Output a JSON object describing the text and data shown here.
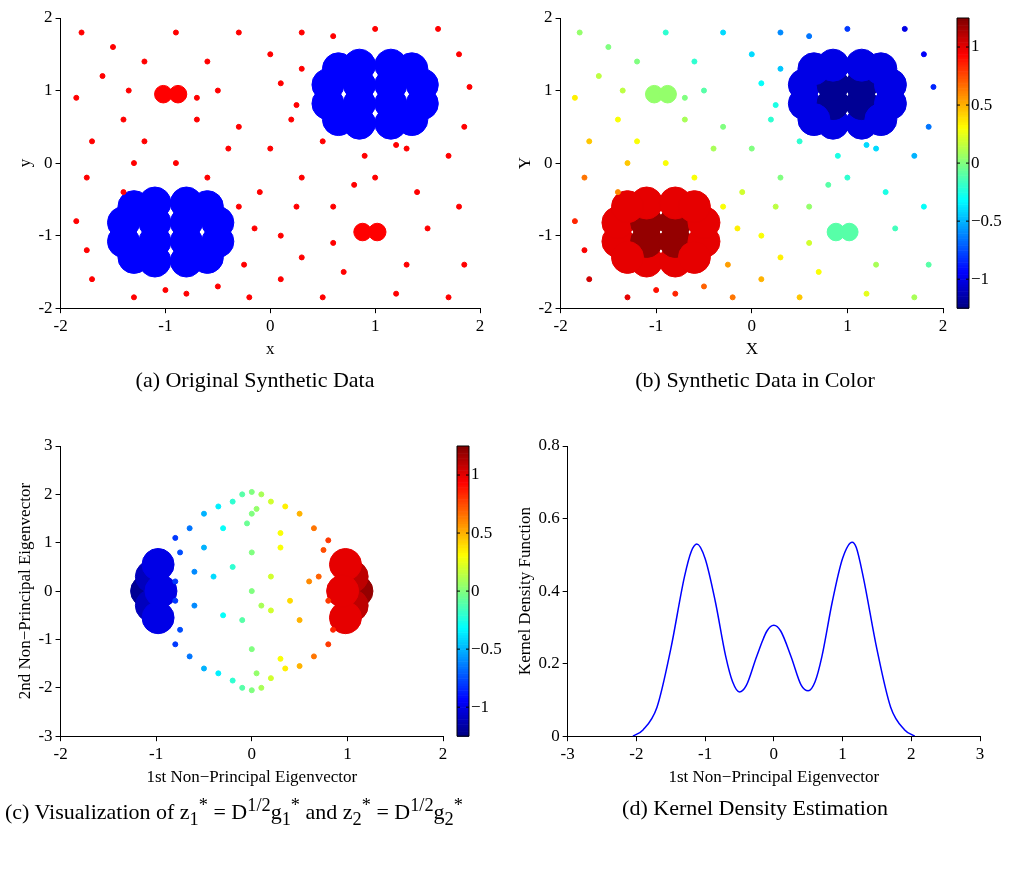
{
  "chart_data": [
    {
      "type": "scatter",
      "title": "(a) Original Synthetic Data",
      "xlabel": "x",
      "ylabel": "y",
      "xlim": [
        -2,
        2
      ],
      "ylim": [
        -2,
        2
      ],
      "xticks": [
        -2,
        -1,
        0,
        1,
        2
      ],
      "yticks": [
        -2,
        -1,
        0,
        1,
        2
      ],
      "marker": "circle",
      "series": [
        {
          "color": "#ff0000",
          "x": [
            -1.8,
            -1.5,
            -1.2,
            -1.6,
            -1.85,
            -1.4,
            -1.7,
            -1.2,
            -1.75,
            -1.4,
            -1.85,
            -1.7,
            -1.3,
            -0.8,
            -0.5,
            -0.2,
            -0.25,
            -0.15,
            -0.3,
            -0.1,
            -0.6,
            -0.9,
            -0.4,
            -0.7,
            -0.5,
            -0.6,
            -0.3,
            -0.9,
            -1.35,
            -0.7,
            0.0,
            0.3,
            0.1,
            0.2,
            0.0,
            0.3,
            0.5,
            0.25,
            0.1,
            0.3,
            0.1,
            0.5,
            0.7,
            0.6,
            0.8,
            1.3,
            1.2,
            1.7,
            1.85,
            1.5,
            1.8,
            1.4,
            1.0,
            1.7,
            1.3,
            0.9,
            1.85,
            1.9,
            1.8,
            1.6,
            1.0,
            0.6,
            0.3,
            0.25,
            1.2,
            -1.75,
            -0.3,
            -1.0,
            0.6,
            -1.3
          ],
          "values": [
            1.8,
            1.6,
            1.4,
            1.2,
            0.9,
            0.6,
            0.3,
            0.3,
            -0.2,
            -0.4,
            -0.8,
            -1.6,
            -1.85,
            -1.8,
            -1.7,
            -1.85,
            -1.4,
            -0.9,
            -0.6,
            -0.4,
            -0.2,
            0.0,
            0.2,
            0.6,
            1.0,
            1.4,
            1.8,
            1.8,
            1.0,
            0.9,
            1.5,
            1.8,
            1.1,
            0.6,
            0.2,
            -0.2,
            0.3,
            -0.6,
            -1.0,
            -1.3,
            -1.6,
            -1.85,
            -1.5,
            -0.6,
            -0.3,
            -1.4,
            -1.8,
            -1.85,
            -1.4,
            -0.9,
            -0.6,
            -0.4,
            -0.2,
            0.1,
            0.2,
            0.1,
            0.5,
            1.05,
            1.5,
            1.85,
            1.85,
            1.75,
            1.3,
            0.8,
            0.25,
            -1.2,
            0.5,
            -1.75,
            -1.1,
            0.0
          ]
        },
        {
          "type": "bubble",
          "color": "#ff0000",
          "x": [
            -1.02,
            -0.88,
            0.88,
            1.02
          ],
          "values": [
            0.95,
            0.95,
            -0.95,
            -0.95
          ],
          "sizes": [
            0.3,
            0.3,
            0.3,
            0.3
          ]
        },
        {
          "type": "bubble",
          "color": "#0000ff",
          "x": [
            -1.4,
            -1.4,
            -1.1,
            -1.1,
            -1.1,
            -1.1,
            -0.8,
            -0.8,
            -0.8,
            -0.8,
            -0.5,
            -0.5,
            -1.3,
            -1.3,
            -0.6,
            -0.6,
            0.55,
            0.55,
            0.85,
            0.85,
            0.85,
            0.85,
            1.15,
            1.15,
            1.15,
            1.15,
            1.45,
            1.45,
            0.65,
            0.65,
            1.35,
            1.35
          ],
          "values": [
            -1.08,
            -0.82,
            -1.35,
            -1.08,
            -0.82,
            -0.55,
            -1.35,
            -1.08,
            -0.82,
            -0.55,
            -1.08,
            -0.82,
            -1.3,
            -0.6,
            -1.3,
            -0.6,
            0.82,
            1.08,
            0.55,
            0.82,
            1.08,
            1.35,
            0.55,
            0.82,
            1.08,
            1.35,
            0.82,
            1.08,
            0.6,
            1.3,
            0.6,
            1.3
          ],
          "sizes": [
            1,
            1,
            1,
            1,
            1,
            1,
            1,
            1,
            1,
            1,
            1,
            1,
            1,
            1,
            1,
            1,
            1,
            1,
            1,
            1,
            1,
            1,
            1,
            1,
            1,
            1,
            1,
            1,
            1,
            1,
            1,
            1
          ]
        }
      ]
    },
    {
      "type": "scatter",
      "title": "(b) Synthetic Data in Color",
      "xlabel": "X",
      "ylabel": "Y",
      "xlim": [
        -2,
        2
      ],
      "ylim": [
        -2,
        2
      ],
      "xticks": [
        -2,
        -1,
        0,
        1,
        2
      ],
      "yticks": [
        -2,
        -1,
        0,
        1,
        2
      ],
      "marker": "circle",
      "clim": [
        -1.25,
        1.25
      ],
      "cticks": [
        -1,
        -0.5,
        0,
        0.5,
        1
      ],
      "series": [
        {
          "x": [
            -1.8,
            -1.5,
            -1.2,
            -1.6,
            -1.85,
            -1.4,
            -1.7,
            -1.2,
            -1.75,
            -1.4,
            -1.85,
            -1.7,
            -1.3,
            -0.8,
            -0.5,
            -0.2,
            -0.25,
            -0.15,
            -0.3,
            -0.1,
            -0.6,
            -0.9,
            -0.4,
            -0.7,
            -0.5,
            -0.6,
            -0.3,
            -0.9,
            -1.35,
            -0.7,
            0.0,
            0.3,
            0.1,
            0.2,
            0.0,
            0.3,
            0.5,
            0.25,
            0.1,
            0.3,
            0.1,
            0.5,
            0.7,
            0.6,
            0.8,
            1.3,
            1.2,
            1.7,
            1.85,
            1.5,
            1.8,
            1.4,
            1.0,
            1.7,
            1.3,
            0.9,
            1.85,
            1.9,
            1.8,
            1.6,
            1.0,
            0.6,
            0.3,
            0.25,
            1.2,
            -1.75,
            -0.3,
            -1.0,
            0.6,
            -1.3
          ],
          "values": [
            1.8,
            1.6,
            1.4,
            1.2,
            0.9,
            0.6,
            0.3,
            0.3,
            -0.2,
            -0.4,
            -0.8,
            -1.6,
            -1.85,
            -1.8,
            -1.7,
            -1.85,
            -1.4,
            -0.9,
            -0.6,
            -0.4,
            -0.2,
            0.0,
            0.2,
            0.6,
            1.0,
            1.4,
            1.8,
            1.8,
            1.0,
            0.9,
            1.5,
            1.8,
            1.1,
            0.6,
            0.2,
            -0.2,
            0.3,
            -0.6,
            -1.0,
            -1.3,
            -1.6,
            -1.85,
            -1.5,
            -0.6,
            -0.3,
            -1.4,
            -1.8,
            -1.85,
            -1.4,
            -0.9,
            -0.6,
            -0.4,
            -0.2,
            0.1,
            0.2,
            0.1,
            0.5,
            1.05,
            1.5,
            1.85,
            1.85,
            1.75,
            1.3,
            0.8,
            0.25,
            -1.2,
            0.5,
            -1.75,
            -1.1,
            0.0
          ],
          "cvalues": [
            0.05,
            0.0,
            0.0,
            0.15,
            0.35,
            0.3,
            0.45,
            0.3,
            0.65,
            0.6,
            0.85,
            1.05,
            1.0,
            0.85,
            0.7,
            0.65,
            0.55,
            0.35,
            0.3,
            0.2,
            0.3,
            0.3,
            0.1,
            0.1,
            -0.1,
            -0.2,
            -0.4,
            -0.2,
            0.15,
            0.0,
            -0.4,
            -0.6,
            -0.3,
            -0.2,
            0.0,
            0.0,
            -0.2,
            0.15,
            0.3,
            0.35,
            0.5,
            0.45,
            0.3,
            0.05,
            -0.1,
            0.1,
            0.25,
            0.1,
            -0.1,
            -0.15,
            -0.3,
            -0.25,
            -0.2,
            -0.5,
            -0.4,
            -0.25,
            -0.65,
            -0.85,
            -0.95,
            -1.0,
            -0.8,
            -0.65,
            -0.45,
            -0.25,
            -0.4,
            0.95,
            0.0,
            0.9,
            0.2,
            0.45
          ],
          "colors": [
            "#94ff6b",
            "#80ff80",
            "#80ff80",
            "#bdff42",
            "#fff000",
            "#faff05",
            "#ffc700",
            "#faff05",
            "#ff7500",
            "#ff8a00",
            "#ff2400",
            "#d10000",
            "#e60000",
            "#ff2400",
            "#ff6100",
            "#ff7500",
            "#ff9e00",
            "#fff000",
            "#faff05",
            "#d1ff2e",
            "#faff05",
            "#faff05",
            "#a8ff57",
            "#a8ff57",
            "#57ffa8",
            "#2effd1",
            "#00dbff",
            "#2effd1",
            "#bdff42",
            "#80ff80",
            "#00dbff",
            "#008aff",
            "#05fffa",
            "#2effd1",
            "#80ff80",
            "#80ff80",
            "#2effd1",
            "#bdff42",
            "#faff05",
            "#fff000",
            "#ffb300",
            "#ffc700",
            "#faff05",
            "#94ff6b",
            "#57ffa8",
            "#a8ff57",
            "#e6ff1a",
            "#a8ff57",
            "#57ffa8",
            "#42ffbd",
            "#05fffa",
            "#1affe6",
            "#2effd1",
            "#00b3ff",
            "#00dbff",
            "#1affe6",
            "#0075ff",
            "#0024ff",
            "#0000fa",
            "#0000e6",
            "#0038ff",
            "#0075ff",
            "#00c7ff",
            "#1affe6",
            "#00dbff",
            "#fa0000",
            "#80ff80",
            "#ff0f00",
            "#d1ff2e",
            "#ffc700"
          ]
        },
        {
          "type": "bubble",
          "x": [
            -1.02,
            -0.88,
            0.88,
            1.02
          ],
          "values": [
            0.95,
            0.95,
            -0.95,
            -0.95
          ],
          "sizes": [
            0.3,
            0.3,
            0.3,
            0.3
          ],
          "cvalues": [
            0.05,
            0.05,
            -0.1,
            -0.1
          ],
          "colors": [
            "#94ff6b",
            "#94ff6b",
            "#57ffa8",
            "#57ffa8"
          ]
        },
        {
          "type": "bubble",
          "x": [
            -1.4,
            -1.4,
            -1.1,
            -1.1,
            -1.1,
            -1.1,
            -0.8,
            -0.8,
            -0.8,
            -0.8,
            -0.5,
            -0.5,
            -1.3,
            -1.3,
            -0.6,
            -0.6,
            0.55,
            0.55,
            0.85,
            0.85,
            0.85,
            0.85,
            1.15,
            1.15,
            1.15,
            1.15,
            1.45,
            1.45,
            0.65,
            0.65,
            1.35,
            1.35
          ],
          "values": [
            -1.08,
            -0.82,
            -1.35,
            -1.08,
            -0.82,
            -0.55,
            -1.35,
            -1.08,
            -0.82,
            -0.55,
            -1.08,
            -0.82,
            -1.3,
            -0.6,
            -1.3,
            -0.6,
            0.82,
            1.08,
            0.55,
            0.82,
            1.08,
            1.35,
            0.55,
            0.82,
            1.08,
            1.35,
            0.82,
            1.08,
            0.6,
            1.3,
            0.6,
            1.3
          ],
          "sizes": [
            1,
            1,
            1,
            1,
            1,
            1,
            1,
            1,
            1,
            1,
            1,
            1,
            1,
            1,
            1,
            1,
            1,
            1,
            1,
            1,
            1,
            1,
            1,
            1,
            1,
            1,
            1,
            1,
            1,
            1,
            1,
            1
          ],
          "cvalues": [
            1.0,
            1.0,
            1.0,
            1.2,
            1.2,
            1.0,
            1.0,
            1.2,
            1.2,
            1.0,
            1.0,
            1.0,
            1.0,
            1.0,
            1.0,
            1.0,
            -1.0,
            -1.0,
            -1.0,
            -1.2,
            -1.2,
            -1.0,
            -1.0,
            -1.2,
            -1.2,
            -1.0,
            -1.0,
            -1.0,
            -1.0,
            -1.0,
            -1.0,
            -1.0
          ],
          "colors": [
            "#e60000",
            "#e60000",
            "#e60000",
            "#940000",
            "#940000",
            "#e60000",
            "#e60000",
            "#940000",
            "#940000",
            "#e60000",
            "#e60000",
            "#e60000",
            "#e60000",
            "#e60000",
            "#e60000",
            "#e60000",
            "#0000e6",
            "#0000e6",
            "#0000e6",
            "#000094",
            "#000094",
            "#0000e6",
            "#0000e6",
            "#000094",
            "#000094",
            "#0000e6",
            "#0000e6",
            "#0000e6",
            "#0000e6",
            "#0000e6",
            "#0000e6",
            "#0000e6"
          ]
        }
      ]
    },
    {
      "type": "scatter",
      "title": "(c) Visualization of z$_{1}$$^{*}$ = D$^{1/2}$g$_{1}$$^{*}$ and z$_{2}$$^{*}$ = D$^{1/2}$g$_{2}$$^{*}$",
      "xlabel": "1st Non−Principal Eigenvector",
      "ylabel": "2nd Non−Principal Eigenvector",
      "xlim": [
        -2,
        2
      ],
      "ylim": [
        -3,
        3
      ],
      "xticks": [
        -2,
        -1,
        0,
        1,
        2
      ],
      "yticks": [
        -3,
        -2,
        -1,
        0,
        1,
        2,
        3
      ],
      "marker": "circle",
      "clim": [
        -1.25,
        1.25
      ],
      "cticks": [
        -1,
        -0.5,
        0,
        0.5,
        1
      ],
      "series": [
        {
          "x": [
            0,
            0.1,
            -0.1,
            0.05,
            -0.05,
            0,
            -0.2,
            0.2,
            -0.35,
            0.35,
            -0.5,
            0.5,
            -0.65,
            0.65,
            -0.8,
            0.8,
            -0.75,
            0.75,
            -0.3,
            0.3,
            0,
            0.1,
            -0.1,
            0.05,
            0,
            -0.2,
            0.2,
            -0.35,
            0.35,
            -0.5,
            0.5,
            -0.65,
            0.65,
            -0.8,
            0.8,
            -0.75,
            0.85,
            0.3,
            -0.6,
            -0.6,
            -0.4,
            -0.2,
            0,
            0.2,
            0.1,
            -0.3,
            0.4,
            0.6,
            0.5,
            -0.5,
            0.3,
            0.7,
            0.8,
            -0.8,
            -0.8,
            -0.1,
            0,
            0.2
          ],
          "values": [
            2.05,
            2.0,
            2.0,
            1.7,
            1.4,
            1.6,
            1.85,
            1.85,
            1.75,
            1.75,
            1.6,
            1.6,
            1.3,
            1.3,
            1.1,
            1.05,
            0.8,
            0.85,
            1.3,
            1.2,
            -2.05,
            -2.0,
            -2.0,
            -1.7,
            -1.2,
            -1.85,
            -1.8,
            -1.7,
            -1.6,
            -1.6,
            -1.55,
            -1.35,
            -1.35,
            -1.1,
            -1.1,
            -0.8,
            -0.8,
            -1.4,
            0.4,
            -0.3,
            0.3,
            0.5,
            0,
            0.3,
            -0.3,
            -0.5,
            -0.2,
            0.2,
            -0.6,
            0.9,
            0.9,
            0.3,
            -0.2,
            0.2,
            -0.2,
            -0.6,
            0.8,
            -0.4
          ],
          "cvalues": [
            0,
            0.1,
            -0.1,
            0.05,
            -0.05,
            0,
            -0.2,
            0.2,
            -0.35,
            0.35,
            -0.5,
            0.5,
            -0.65,
            0.65,
            -0.8,
            0.8,
            -0.75,
            0.75,
            -0.3,
            0.3,
            0,
            0.1,
            -0.1,
            0.05,
            0,
            -0.2,
            0.2,
            -0.35,
            0.35,
            -0.5,
            0.5,
            -0.65,
            0.65,
            -0.8,
            0.8,
            -0.75,
            0.85,
            0.3,
            -0.6,
            -0.6,
            -0.4,
            -0.2,
            0,
            0.2,
            0.1,
            -0.3,
            0.4,
            0.6,
            0.5,
            -0.5,
            0.3,
            0.7,
            0.8,
            -0.8,
            -0.8,
            -0.1,
            0,
            0.2
          ],
          "colors": [
            "#80ff80",
            "#a8ff57",
            "#57ffa8",
            "#94ff6b",
            "#6bff94",
            "#80ff80",
            "#2effd1",
            "#d1ff2e",
            "#00f0ff",
            "#fff000",
            "#00b3ff",
            "#ffb300",
            "#0075ff",
            "#ff7500",
            "#0038ff",
            "#ff3800",
            "#004dff",
            "#ff4d00",
            "#05fffa",
            "#faff05",
            "#80ff80",
            "#a8ff57",
            "#57ffa8",
            "#94ff6b",
            "#80ff80",
            "#2effd1",
            "#d1ff2e",
            "#00f0ff",
            "#fff000",
            "#00b3ff",
            "#ffb300",
            "#0075ff",
            "#ff7500",
            "#0038ff",
            "#ff3800",
            "#004dff",
            "#ff2400",
            "#faff05",
            "#008aff",
            "#008aff",
            "#00dbff",
            "#2effd1",
            "#80ff80",
            "#d1ff2e",
            "#a8ff57",
            "#05fffa",
            "#ffdb00",
            "#ff8a00",
            "#ffb300",
            "#00b3ff",
            "#faff05",
            "#ff6100",
            "#ff3800",
            "#0038ff",
            "#0038ff",
            "#57ffa8",
            "#80ff80",
            "#d1ff2e"
          ]
        },
        {
          "type": "bubble",
          "x": [
            -1.1,
            -1.05,
            -1.05,
            -0.98,
            -0.98,
            -0.95,
            1.1,
            1.05,
            1.05,
            0.98,
            0.98,
            0.95
          ],
          "values": [
            0,
            0.3,
            -0.3,
            0.55,
            -0.55,
            0,
            0,
            0.3,
            -0.3,
            0.55,
            -0.55,
            0
          ],
          "sizes": [
            1,
            1,
            1,
            1,
            1,
            1,
            1,
            1,
            1,
            1,
            1,
            1
          ],
          "cvalues": [
            -1.2,
            -1.1,
            -1.1,
            -1.0,
            -1.0,
            -1.0,
            1.2,
            1.1,
            1.1,
            1.0,
            1.0,
            1.0
          ],
          "colors": [
            "#000094",
            "#0000bd",
            "#0000bd",
            "#0000e6",
            "#0000e6",
            "#0000e6",
            "#940000",
            "#bd0000",
            "#bd0000",
            "#e60000",
            "#e60000",
            "#e60000"
          ]
        }
      ]
    },
    {
      "type": "line",
      "title": "(d) Kernel Density Estimation",
      "xlabel": "1st Non−Principal Eigenvector",
      "ylabel": "Kernel Density Function",
      "xlim": [
        -3,
        3
      ],
      "ylim": [
        0,
        0.8
      ],
      "xticks": [
        -3,
        -2,
        -1,
        0,
        1,
        2,
        3
      ],
      "yticks": [
        0,
        0.2,
        0.4,
        0.6,
        0.8
      ],
      "series": [
        {
          "color": "#0000ff",
          "x": [
            -2.05,
            -1.9,
            -1.7,
            -1.5,
            -1.3,
            -1.2,
            -1.12,
            -1.0,
            -0.85,
            -0.7,
            -0.6,
            -0.5,
            -0.4,
            -0.25,
            -0.1,
            0,
            0.1,
            0.25,
            0.4,
            0.5,
            0.6,
            0.7,
            0.85,
            1.0,
            1.14,
            1.2,
            1.3,
            1.5,
            1.7,
            1.9,
            2.05
          ],
          "values": [
            0,
            0.018,
            0.08,
            0.24,
            0.44,
            0.51,
            0.53,
            0.49,
            0.37,
            0.22,
            0.15,
            0.122,
            0.14,
            0.22,
            0.29,
            0.306,
            0.29,
            0.22,
            0.14,
            0.125,
            0.15,
            0.22,
            0.37,
            0.49,
            0.535,
            0.52,
            0.44,
            0.24,
            0.08,
            0.018,
            0
          ]
        }
      ]
    }
  ]
}
